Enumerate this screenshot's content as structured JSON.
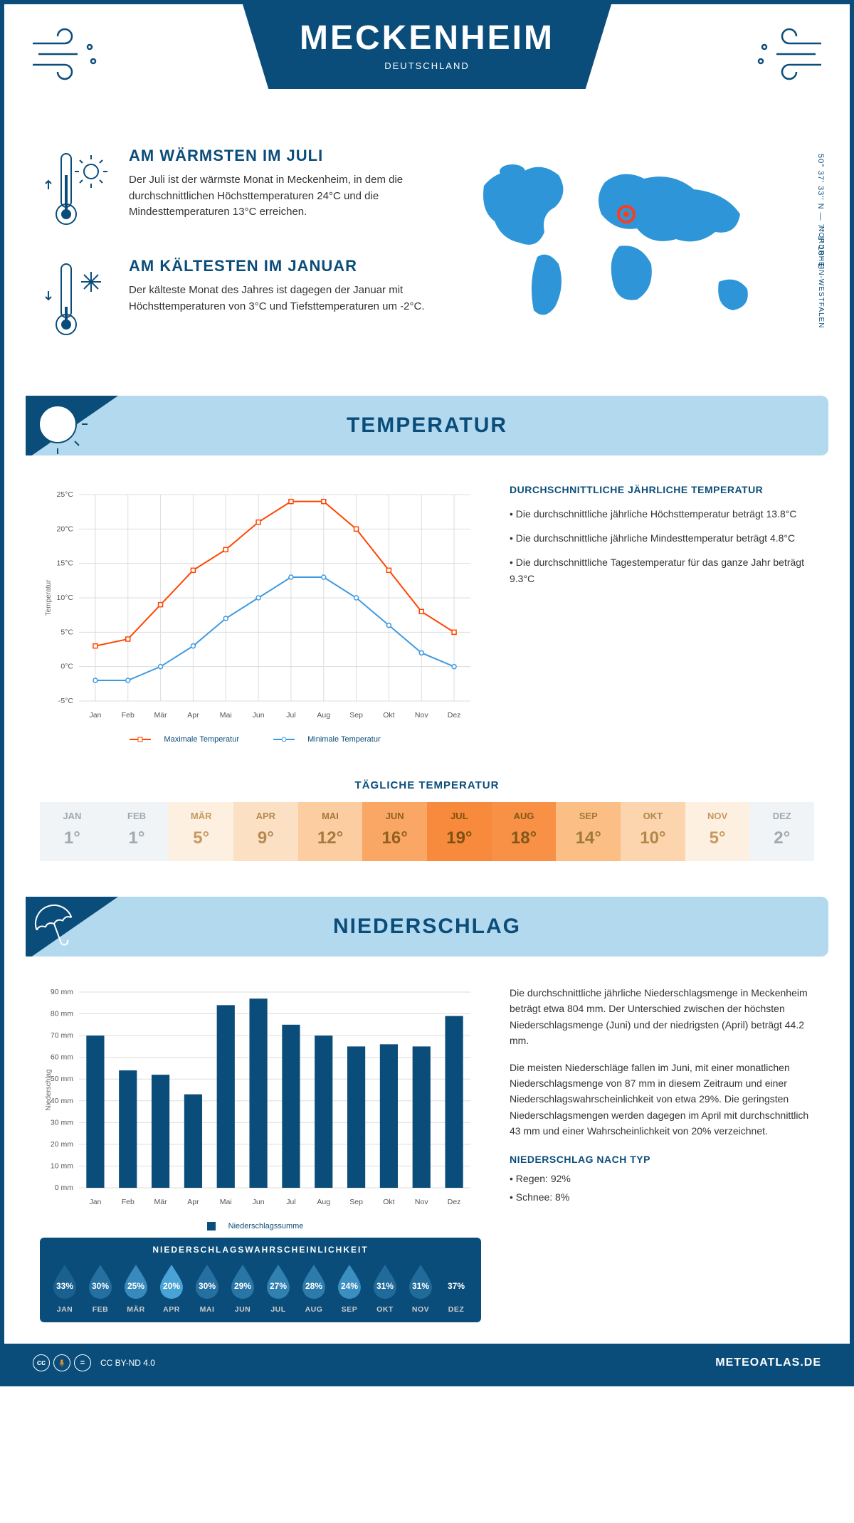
{
  "header": {
    "city": "MECKENHEIM",
    "country": "DEUTSCHLAND",
    "coords": "50° 37' 33'' N — 7° 1' 10'' E",
    "region": "NORDRHEIN-WESTFALEN"
  },
  "extremes": {
    "hot": {
      "title": "AM WÄRMSTEN IM JULI",
      "text": "Der Juli ist der wärmste Monat in Meckenheim, in dem die durchschnittlichen Höchsttemperaturen 24°C und die Mindesttemperaturen 13°C erreichen."
    },
    "cold": {
      "title": "AM KÄLTESTEN IM JANUAR",
      "text": "Der kälteste Monat des Jahres ist dagegen der Januar mit Höchsttemperaturen von 3°C und Tiefsttemperaturen um -2°C."
    }
  },
  "temp_section_title": "TEMPERATUR",
  "temp_chart": {
    "type": "line",
    "months": [
      "Jan",
      "Feb",
      "Mär",
      "Apr",
      "Mai",
      "Jun",
      "Jul",
      "Aug",
      "Sep",
      "Okt",
      "Nov",
      "Dez"
    ],
    "max_series": {
      "label": "Maximale Temperatur",
      "color": "#ff4500",
      "values": [
        3,
        4,
        9,
        14,
        17,
        21,
        24,
        24,
        20,
        14,
        8,
        5
      ]
    },
    "min_series": {
      "label": "Minimale Temperatur",
      "color": "#3d9ae2",
      "values": [
        -2,
        -2,
        0,
        3,
        7,
        10,
        13,
        13,
        10,
        6,
        2,
        0
      ]
    },
    "ylim": [
      -5,
      25
    ],
    "ytick_step": 5,
    "ylabel": "Temperatur",
    "grid_color": "#e0e0e0",
    "background_color": "#ffffff",
    "label_fontsize": 10
  },
  "temp_avg": {
    "title": "DURCHSCHNITTLICHE JÄHRLICHE TEMPERATUR",
    "bullets": [
      "Die durchschnittliche jährliche Höchsttemperatur beträgt 13.8°C",
      "Die durchschnittliche jährliche Mindesttemperatur beträgt 4.8°C",
      "Die durchschnittliche Tagestemperatur für das ganze Jahr beträgt 9.3°C"
    ]
  },
  "daily_temp": {
    "title": "TÄGLICHE TEMPERATUR",
    "months": [
      "JAN",
      "FEB",
      "MÄR",
      "APR",
      "MAI",
      "JUN",
      "JUL",
      "AUG",
      "SEP",
      "OKT",
      "NOV",
      "DEZ"
    ],
    "values": [
      1,
      1,
      5,
      9,
      12,
      16,
      19,
      18,
      14,
      10,
      5,
      2
    ],
    "colors": [
      "#f0f4f7",
      "#f0f4f7",
      "#fdf0e1",
      "#fce0c3",
      "#fbcda0",
      "#faa766",
      "#f78a3c",
      "#f89146",
      "#fbbf86",
      "#fcd4ad",
      "#fdf0e1",
      "#f0f4f7"
    ],
    "text_colors": [
      "#a0a8b0",
      "#a0a8b0",
      "#c89860",
      "#b88850",
      "#a87840",
      "#906020",
      "#805010",
      "#805818",
      "#a07838",
      "#b08848",
      "#c89860",
      "#a0a8b0"
    ]
  },
  "precip_section_title": "NIEDERSCHLAG",
  "precip_chart": {
    "type": "bar",
    "months": [
      "Jan",
      "Feb",
      "Mär",
      "Apr",
      "Mai",
      "Jun",
      "Jul",
      "Aug",
      "Sep",
      "Okt",
      "Nov",
      "Dez"
    ],
    "values": [
      70,
      54,
      52,
      43,
      84,
      87,
      75,
      70,
      65,
      66,
      65,
      79
    ],
    "bar_color": "#0b4d7a",
    "legend_label": "Niederschlagssumme",
    "ylim": [
      0,
      90
    ],
    "ytick_step": 10,
    "ylabel": "Niederschlag",
    "grid_color": "#e0e0e0",
    "bar_width": 0.55
  },
  "precip_prob": {
    "title": "NIEDERSCHLAGSWAHRSCHEINLICHKEIT",
    "months": [
      "JAN",
      "FEB",
      "MÄR",
      "APR",
      "MAI",
      "JUN",
      "JUL",
      "AUG",
      "SEP",
      "OKT",
      "NOV",
      "DEZ"
    ],
    "values": [
      33,
      30,
      25,
      20,
      30,
      29,
      27,
      28,
      24,
      31,
      31,
      37
    ],
    "base_color": "#0b4d7a",
    "light_color": "#4aa3d6"
  },
  "precip_text": {
    "p1": "Die durchschnittliche jährliche Niederschlagsmenge in Meckenheim beträgt etwa 804 mm. Der Unterschied zwischen der höchsten Niederschlagsmenge (Juni) und der niedrigsten (April) beträgt 44.2 mm.",
    "p2": "Die meisten Niederschläge fallen im Juni, mit einer monatlichen Niederschlagsmenge von 87 mm in diesem Zeitraum und einer Niederschlagswahrscheinlichkeit von etwa 29%. Die geringsten Niederschlagsmengen werden dagegen im April mit durchschnittlich 43 mm und einer Wahrscheinlichkeit von 20% verzeichnet.",
    "type_title": "NIEDERSCHLAG NACH TYP",
    "type_bullets": [
      "Regen: 92%",
      "Schnee: 8%"
    ]
  },
  "footer": {
    "license": "CC BY-ND 4.0",
    "site": "METEOATLAS.DE"
  },
  "palette": {
    "primary": "#0b4d7a",
    "accent_light": "#b3d9ef",
    "map_blue": "#2e96d8",
    "marker": "#ff3b1f"
  }
}
